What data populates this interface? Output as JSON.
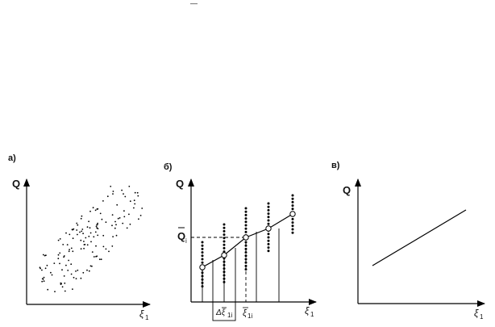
{
  "panels": [
    {
      "id": "a",
      "label": "а)",
      "y_axis": "Q",
      "x_axis": "ξ",
      "x_axis_sub": "1"
    },
    {
      "id": "b",
      "label": "б)",
      "y_axis": "Q",
      "x_axis": "ξ",
      "x_axis_sub": "1",
      "annotations": {
        "q_mean": "Q",
        "q_mean_sub": "i",
        "interval": "Δξ",
        "interval_sub": "1i",
        "xi_mean": "ξ",
        "xi_mean_sub": "1i"
      }
    },
    {
      "id": "c",
      "label": "в)",
      "y_axis": "Q",
      "x_axis": "ξ",
      "x_axis_sub": "1"
    }
  ],
  "overline_mark": "—"
}
